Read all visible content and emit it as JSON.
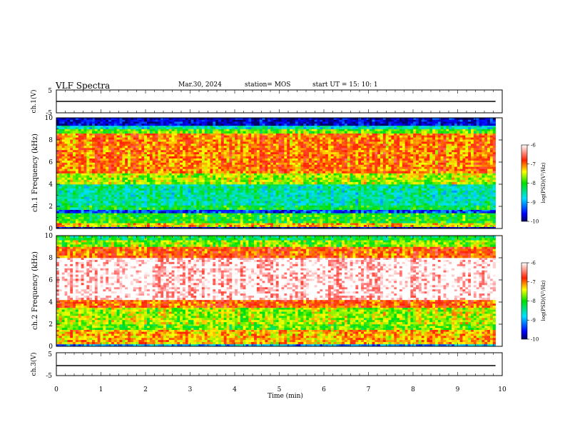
{
  "header": {
    "title": "VLF Spectra",
    "date": "Mar.30, 2024",
    "station": "station= MOS",
    "start_ut": "start  UT  =   15: 10: 1"
  },
  "chart_data": [
    {
      "type": "line",
      "panel": "ch1-waveform",
      "ylabel": "ch.1(V)",
      "ylim": [
        -5,
        5
      ],
      "yticks": [
        "5",
        "-5"
      ],
      "series": [
        {
          "x": [
            0,
            9.85
          ],
          "values": [
            0,
            0
          ]
        }
      ]
    },
    {
      "type": "heatmap",
      "panel": "ch1-spectrogram",
      "ylabel": "ch.1 Frequency (kHz)",
      "ylim": [
        0,
        10
      ],
      "yticks": [
        "0",
        "2",
        "4",
        "6",
        "8",
        "10"
      ],
      "xlim": [
        0,
        9.85
      ],
      "colorbar": {
        "label": "log(PSD)(V²/Hz)",
        "min": -10,
        "max": -6,
        "ticks": [
          "-6",
          "-7",
          "-8",
          "-9",
          "-10"
        ]
      },
      "bands": [
        {
          "from": 0,
          "to": 0.15,
          "level": -9.8
        },
        {
          "from": 0.15,
          "to": 0.5,
          "level": -7.3
        },
        {
          "from": 0.5,
          "to": 1.4,
          "level": -8.0
        },
        {
          "from": 1.4,
          "to": 1.7,
          "level": -9.4
        },
        {
          "from": 1.7,
          "to": 2.1,
          "level": -8.2
        },
        {
          "from": 2.1,
          "to": 4.0,
          "level": -8.5
        },
        {
          "from": 4.0,
          "to": 5.0,
          "level": -7.6
        },
        {
          "from": 5.0,
          "to": 8.6,
          "level": -7.0
        },
        {
          "from": 8.6,
          "to": 9.0,
          "level": -7.8
        },
        {
          "from": 9.0,
          "to": 9.3,
          "level": -8.6
        },
        {
          "from": 9.3,
          "to": 10,
          "level": -9.7
        }
      ]
    },
    {
      "type": "heatmap",
      "panel": "ch2-spectrogram",
      "ylabel": "ch.2 Frequency (kHz)",
      "ylim": [
        0,
        10
      ],
      "yticks": [
        "0",
        "2",
        "4",
        "6",
        "8",
        "10"
      ],
      "xlim": [
        0,
        9.85
      ],
      "colorbar": {
        "label": "log(PSD)(V²/Hz)",
        "min": -10,
        "max": -6,
        "ticks": [
          "-6",
          "-7",
          "-8",
          "-9",
          "-10"
        ]
      },
      "bands": [
        {
          "from": 0,
          "to": 0.2,
          "level": -9.0
        },
        {
          "from": 0.2,
          "to": 1.5,
          "level": -7.2
        },
        {
          "from": 1.5,
          "to": 2.0,
          "level": -7.8
        },
        {
          "from": 2.0,
          "to": 3.5,
          "level": -7.6
        },
        {
          "from": 3.5,
          "to": 4.2,
          "level": -6.9
        },
        {
          "from": 4.2,
          "to": 8.0,
          "level": -6.0
        },
        {
          "from": 8.0,
          "to": 9.0,
          "level": -6.9
        },
        {
          "from": 9.0,
          "to": 9.6,
          "level": -7.7
        },
        {
          "from": 9.6,
          "to": 10,
          "level": -8.2
        }
      ]
    },
    {
      "type": "line",
      "panel": "ch3-waveform",
      "ylabel": "ch.3(V)",
      "ylim": [
        -5,
        5
      ],
      "yticks": [
        "5",
        "-5"
      ],
      "series": [
        {
          "x": [
            0,
            9.85
          ],
          "values": [
            0,
            0
          ]
        }
      ]
    }
  ],
  "xaxis": {
    "label": "Time (min)",
    "xlim": [
      0,
      10
    ],
    "ticks": [
      "0",
      "1",
      "2",
      "3",
      "4",
      "5",
      "6",
      "7",
      "8",
      "9",
      "10"
    ]
  }
}
